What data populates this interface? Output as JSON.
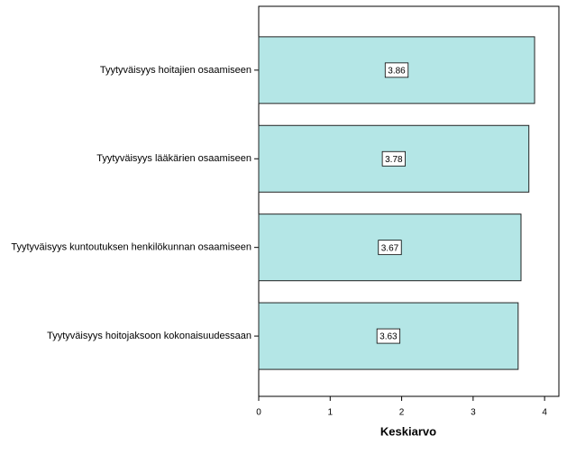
{
  "chart_data": {
    "type": "bar",
    "orientation": "horizontal",
    "x_label": "Keskiarvo",
    "categories": [
      "Tyytyväisyys hoitajien osaamiseen",
      "Tyytyväisyys lääkärien osaamiseen",
      "Tyytyväisyys kuntoutuksen henkilökunnan osaamiseen",
      "Tyytyväisyys hoitojaksoon kokonaisuudessaan"
    ],
    "values": [
      3.86,
      3.78,
      3.67,
      3.63
    ],
    "color": "#b4e6e6",
    "xlim": [
      0,
      4.2
    ],
    "xticks": [
      0,
      1,
      2,
      3,
      4
    ]
  }
}
